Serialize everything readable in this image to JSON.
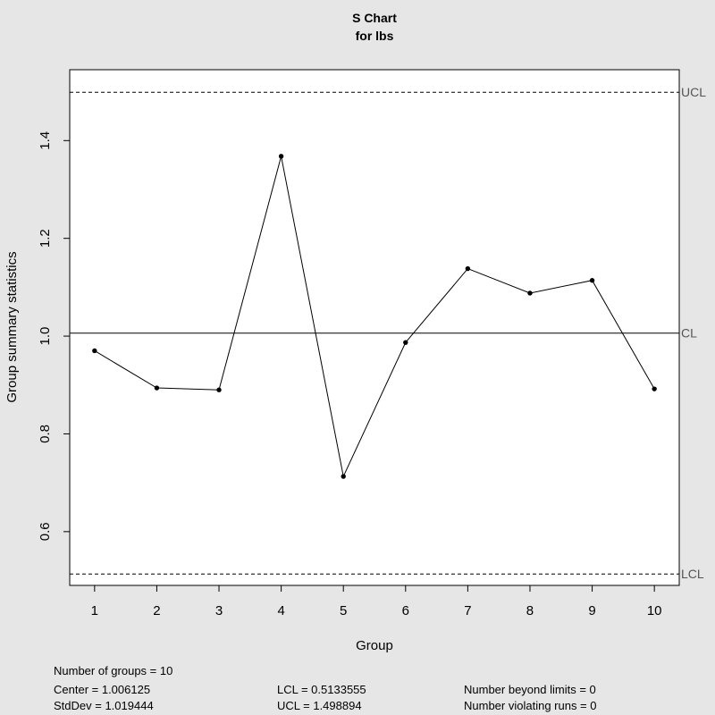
{
  "chart_data": {
    "type": "line",
    "title": "S Chart",
    "subtitle": "for lbs",
    "xlabel": "Group",
    "ylabel": "Group summary statistics",
    "x": [
      1,
      2,
      3,
      4,
      5,
      6,
      7,
      8,
      9,
      10
    ],
    "values": [
      0.97,
      0.894,
      0.89,
      1.368,
      0.713,
      0.987,
      1.138,
      1.088,
      1.114,
      0.892
    ],
    "xlim": [
      0.6,
      10.4
    ],
    "ylim": [
      0.49,
      1.545
    ],
    "xticks": [
      1,
      2,
      3,
      4,
      5,
      6,
      7,
      8,
      9,
      10
    ],
    "yticks": [
      0.6,
      0.8,
      1.0,
      1.2,
      1.4
    ],
    "ytick_labels": [
      "0.6",
      "0.8",
      "1.0",
      "1.2",
      "1.4"
    ],
    "control_lines": [
      {
        "label": "UCL",
        "value": 1.498894,
        "style": "dashed"
      },
      {
        "label": "CL",
        "value": 1.006125,
        "style": "solid"
      },
      {
        "label": "LCL",
        "value": 0.5133555,
        "style": "dashed"
      }
    ],
    "grid": false,
    "colors": {
      "background": "#e6e6e6",
      "panel": "#ffffff",
      "line": "#000000",
      "limit_label": "#555555"
    }
  },
  "stats": {
    "groups": "Number of groups = 10",
    "center": "Center = 1.006125",
    "stddev": "StdDev = 1.019444",
    "lcl": "LCL = 0.5133555",
    "ucl": "UCL = 1.498894",
    "beyond_limits": "Number beyond limits = 0",
    "violating_runs": "Number violating runs = 0"
  }
}
